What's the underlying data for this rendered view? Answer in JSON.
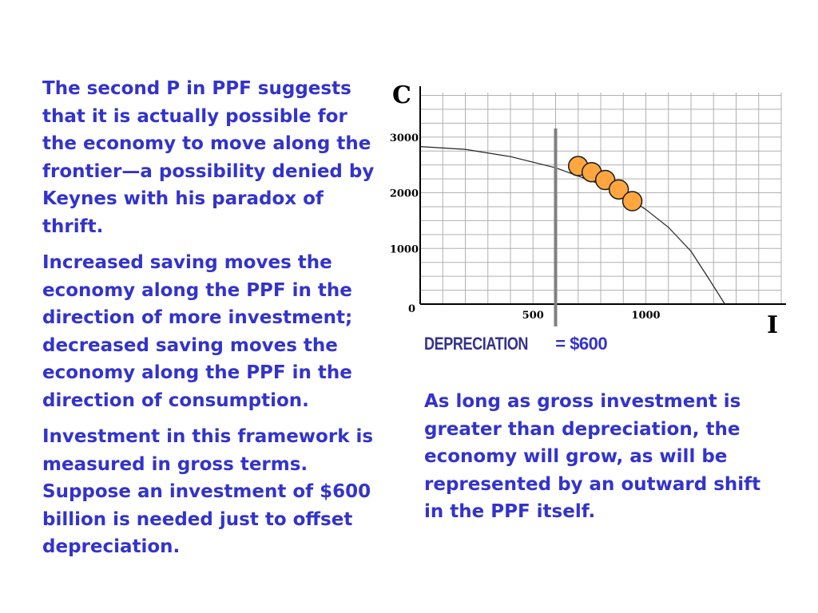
{
  "left_text": {
    "p1": "The second P in PPF suggests that it is actually possible for the economy to move along the frontier—a possibility denied by Keynes with his paradox of thrift.",
    "p2": "Increased saving moves the economy along the PPF in the direction of more investment; decreased saving moves the economy along the PPF in the direction of consumption.",
    "p3": "Investment in this framework is measured in gross terms. Suppose an investment of $600 billion is needed just to offset depreciation."
  },
  "right_text": {
    "p1": "As long as gross investment is greater than depreciation, the economy will grow, as will be represented by an outward shift in the PPF itself."
  },
  "depreciation_label": {
    "word": "DEPRECIATION",
    "value": "= $600"
  },
  "colors": {
    "text": "#3333cc",
    "point_fill": "#ffa640",
    "point_stroke": "#1a1a1a",
    "marker_line": "#808080",
    "grid": "#b0b0b0"
  },
  "chart_data": {
    "type": "line",
    "y_axis_label": "C",
    "x_axis_label": "I",
    "x_ticks": [
      "500",
      "1000"
    ],
    "y_ticks": [
      "0",
      "1000",
      "2000",
      "3000"
    ],
    "xlim": [
      0,
      1600
    ],
    "ylim": [
      0,
      3800
    ],
    "grid": true,
    "frontier": {
      "x": [
        0,
        200,
        400,
        600,
        700,
        800,
        900,
        1000,
        1100,
        1200,
        1280,
        1350
      ],
      "y": [
        2830,
        2780,
        2650,
        2450,
        2300,
        2150,
        1960,
        1700,
        1380,
        950,
        450,
        0
      ]
    },
    "depreciation_line_x": 600,
    "points": [
      {
        "x": 700,
        "y": 2480
      },
      {
        "x": 760,
        "y": 2370
      },
      {
        "x": 820,
        "y": 2230
      },
      {
        "x": 880,
        "y": 2060
      },
      {
        "x": 940,
        "y": 1850
      }
    ]
  }
}
